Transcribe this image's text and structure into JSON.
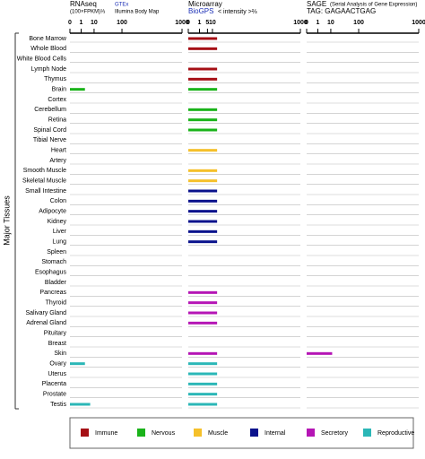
{
  "chart_data": {
    "type": "bar",
    "y_label": "Major Tissues",
    "scale": "cuberoot",
    "categories": [
      "Bone Marrow",
      "Whole Blood",
      "White Blood Cells",
      "Lymph Node",
      "Thymus",
      "Brain",
      "Cortex",
      "Cerebellum",
      "Retina",
      "Spinal Cord",
      "Tibial Nerve",
      "Heart",
      "Artery",
      "Smooth Muscle",
      "Skeletal Muscle",
      "Small Intestine",
      "Colon",
      "Adipocyte",
      "Kidney",
      "Liver",
      "Lung",
      "Spleen",
      "Stomach",
      "Esophagus",
      "Bladder",
      "Pancreas",
      "Thyroid",
      "Salivary Gland",
      "Adrenal Gland",
      "Pituitary",
      "Breast",
      "Skin",
      "Ovary",
      "Uterus",
      "Placenta",
      "Prostate",
      "Testis"
    ],
    "category_groups": [
      0,
      0,
      0,
      0,
      0,
      1,
      1,
      1,
      1,
      1,
      1,
      2,
      2,
      2,
      2,
      3,
      3,
      3,
      3,
      3,
      3,
      3,
      3,
      3,
      3,
      4,
      4,
      4,
      4,
      4,
      4,
      4,
      5,
      5,
      5,
      5,
      5
    ],
    "legend": [
      {
        "name": "Immune",
        "color": "#a50f15"
      },
      {
        "name": "Nervous",
        "color": "#1ab31a"
      },
      {
        "name": "Muscle",
        "color": "#f5c02a"
      },
      {
        "name": "Internal",
        "color": "#0a128c"
      },
      {
        "name": "Secretory",
        "color": "#b515b5"
      },
      {
        "name": "Reproductive",
        "color": "#2bb7b7"
      }
    ],
    "panels": [
      {
        "title": "RNAseq",
        "subtitle": "(100×FPKM)⅓",
        "source": "GTEx",
        "source2": "Illumina Body Map",
        "xlim": [
          0,
          1000
        ],
        "xticks": [
          0,
          1,
          10,
          100,
          1000
        ],
        "values": [
          0,
          0,
          0,
          0,
          0,
          2.4,
          0,
          0,
          0,
          0,
          0,
          0,
          0,
          0,
          0,
          0,
          0,
          0,
          0,
          0,
          0,
          0,
          0,
          0,
          0,
          0,
          0,
          0,
          0,
          0,
          0,
          0,
          2.4,
          0,
          0,
          0,
          5.9
        ]
      },
      {
        "title": "Microarray",
        "source": "BioGPS",
        "subtitle": "< intensity >⅔",
        "xlim": [
          0,
          1000
        ],
        "xticks": [
          0,
          1,
          5,
          10,
          1000
        ],
        "values": [
          17,
          17,
          null,
          17,
          17,
          17,
          null,
          17,
          17,
          17,
          null,
          17,
          null,
          17,
          17,
          17,
          17,
          17,
          17,
          17,
          17,
          null,
          null,
          null,
          null,
          17,
          17,
          17,
          17,
          null,
          null,
          17,
          17,
          17,
          17,
          17,
          17
        ]
      },
      {
        "title": "SAGE",
        "subtitle": "(Serial Analysis of Gene Expression)",
        "source": "TAG: GAGAACTGAG",
        "xlim": [
          0,
          1000
        ],
        "xticks": [
          0,
          1,
          10,
          100,
          1000
        ],
        "values": [
          0,
          0,
          0,
          0,
          0,
          0,
          0,
          0,
          0,
          0,
          0,
          0,
          0,
          0,
          0,
          0,
          0,
          0,
          0,
          0,
          0,
          0,
          0,
          0,
          0,
          0,
          0,
          0,
          0,
          0,
          0,
          11.8,
          0,
          0,
          0,
          0,
          0
        ]
      }
    ]
  }
}
